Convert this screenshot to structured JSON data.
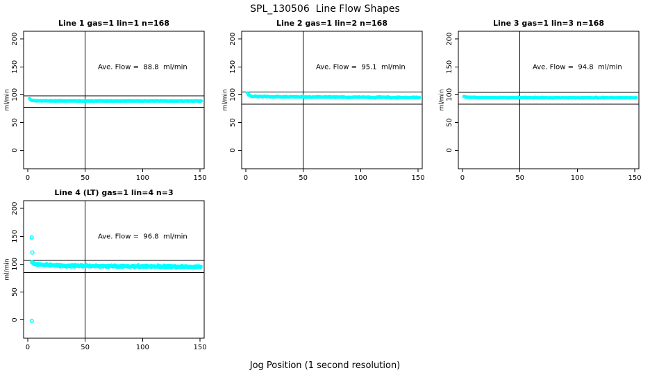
{
  "figure": {
    "main_title": "SPL_130506  Line Flow Shapes",
    "x_axis_label": "Jog Position (1 second resolution)",
    "y_axis_label": "ml/min",
    "point_color": "#00ffff",
    "axis_color": "#000000",
    "background": "#ffffff"
  },
  "chart_data": [
    {
      "type": "scatter",
      "title": "Line 1 gas=1 lin=1 n=168",
      "annotation": "Ave. Flow =  88.8  ml/min",
      "ave_flow_ml_min": 88.8,
      "n": 168,
      "gas": 1,
      "lin": 1,
      "ylabel": "ml/min",
      "x_ticks": [
        0,
        50,
        100,
        150
      ],
      "y_ticks": [
        0,
        50,
        100,
        150,
        200
      ],
      "xlim": [
        -3.6,
        153.6
      ],
      "ylim": [
        -33,
        214
      ],
      "vline_x": 50,
      "hlines": [
        97.7,
        77.7
      ],
      "band": {
        "x_start": 1.5,
        "x_end": 151,
        "step": 0.5,
        "halfwidth": 0.6,
        "dots_per_x": 1,
        "anchors": [
          [
            1.5,
            92.8
          ],
          [
            2.5,
            90.8
          ],
          [
            4,
            89.7
          ],
          [
            7,
            89.2
          ],
          [
            12,
            89.0
          ],
          [
            30,
            88.9
          ],
          [
            60,
            88.8
          ],
          [
            100,
            88.7
          ],
          [
            130,
            88.6
          ],
          [
            151,
            88.6
          ]
        ]
      },
      "outliers": [],
      "seed": 11
    },
    {
      "type": "scatter",
      "title": "Line 2 gas=1 lin=2 n=168",
      "annotation": "Ave. Flow =  95.1  ml/min",
      "ave_flow_ml_min": 95.1,
      "n": 168,
      "gas": 1,
      "lin": 2,
      "ylabel": "ml/min",
      "x_ticks": [
        0,
        50,
        100,
        150
      ],
      "y_ticks": [
        0,
        50,
        100,
        150,
        200
      ],
      "xlim": [
        -3.6,
        153.6
      ],
      "ylim": [
        -33,
        214
      ],
      "vline_x": 50,
      "hlines": [
        104.6,
        83.2
      ],
      "band": {
        "x_start": 1.5,
        "x_end": 151,
        "step": 0.5,
        "halfwidth": 0.9,
        "dots_per_x": 1,
        "anchors": [
          [
            1.5,
            103.5
          ],
          [
            2.5,
            100.2
          ],
          [
            3.5,
            98.6
          ],
          [
            5,
            97.6
          ],
          [
            8,
            97.1
          ],
          [
            15,
            96.7
          ],
          [
            30,
            96.3
          ],
          [
            60,
            95.9
          ],
          [
            100,
            95.4
          ],
          [
            130,
            95.1
          ],
          [
            151,
            94.9
          ]
        ]
      },
      "outliers": [],
      "seed": 22
    },
    {
      "type": "scatter",
      "title": "Line 3 gas=1 lin=3 n=168",
      "annotation": "Ave. Flow =  94.8  ml/min",
      "ave_flow_ml_min": 94.8,
      "n": 168,
      "gas": 1,
      "lin": 3,
      "ylabel": "ml/min",
      "x_ticks": [
        0,
        50,
        100,
        150
      ],
      "y_ticks": [
        0,
        50,
        100,
        150,
        200
      ],
      "xlim": [
        -3.6,
        153.6
      ],
      "ylim": [
        -33,
        214
      ],
      "vline_x": 50,
      "hlines": [
        104.3,
        82.9
      ],
      "band": {
        "x_start": 1.5,
        "x_end": 151,
        "step": 0.5,
        "halfwidth": 0.7,
        "dots_per_x": 1,
        "anchors": [
          [
            1.5,
            96.6
          ],
          [
            3,
            95.6
          ],
          [
            6,
            95.2
          ],
          [
            12,
            95.0
          ],
          [
            40,
            94.8
          ],
          [
            80,
            94.7
          ],
          [
            120,
            94.7
          ],
          [
            151,
            94.6
          ]
        ]
      },
      "outliers": [],
      "seed": 33
    },
    {
      "type": "scatter",
      "title": "Line 4 (LT) gas=1 lin=4 n=3",
      "annotation": "Ave. Flow =  96.8  ml/min",
      "ave_flow_ml_min": 96.8,
      "n": 3,
      "gas": 1,
      "lin": 4,
      "ylabel": "ml/min",
      "x_ticks": [
        0,
        50,
        100,
        150
      ],
      "y_ticks": [
        0,
        50,
        100,
        150,
        200
      ],
      "xlim": [
        -3.6,
        153.6
      ],
      "ylim": [
        -33,
        214
      ],
      "vline_x": 50,
      "hlines": [
        106.5,
        84.7
      ],
      "band": {
        "x_start": 3.5,
        "x_end": 151,
        "step": 0.4,
        "halfwidth": 2.0,
        "dots_per_x": 2,
        "anchors": [
          [
            3.5,
            103.0
          ],
          [
            4.5,
            101.5
          ],
          [
            6,
            100.3
          ],
          [
            8,
            99.5
          ],
          [
            12,
            98.8
          ],
          [
            18,
            98.2
          ],
          [
            25,
            97.7
          ],
          [
            35,
            97.2
          ],
          [
            50,
            96.8
          ],
          [
            70,
            96.4
          ],
          [
            90,
            96.1
          ],
          [
            110,
            95.8
          ],
          [
            130,
            95.5
          ],
          [
            151,
            95.2
          ]
        ]
      },
      "outliers": [
        [
          3.5,
          148
        ],
        [
          4,
          121
        ],
        [
          3.5,
          -2
        ]
      ],
      "seed": 44
    }
  ]
}
